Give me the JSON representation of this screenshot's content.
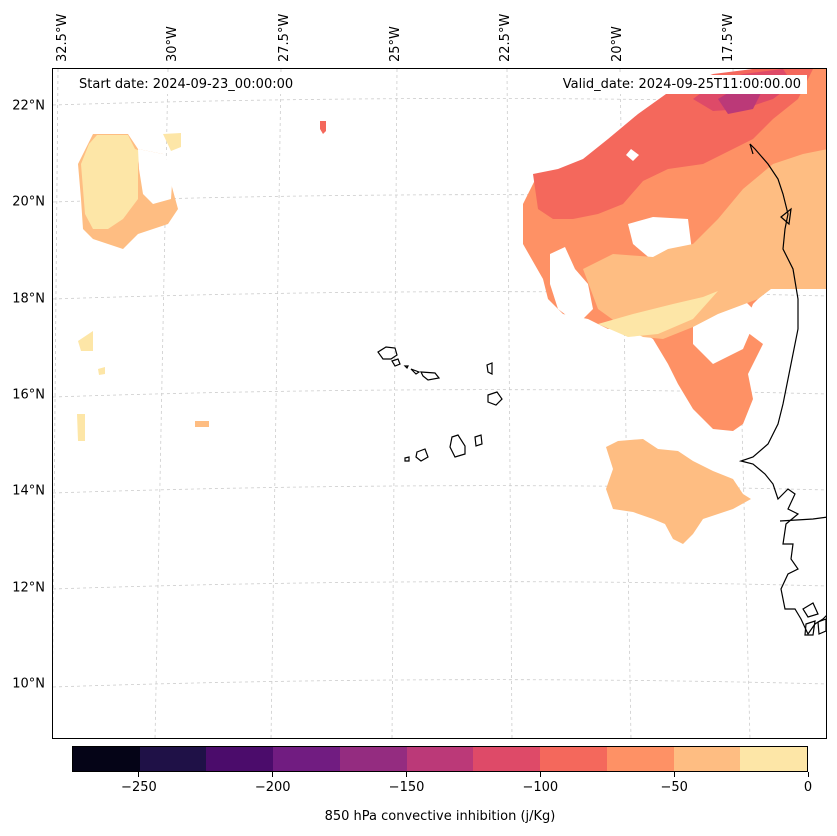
{
  "map": {
    "start_date": "Start date: 2024-09-23_00:00:00",
    "valid_date": "Valid_date: 2024-09-25T11:00:00.00",
    "lon_labels": [
      "32.5°W",
      "30°W",
      "27.5°W",
      "25°W",
      "22.5°W",
      "20°W",
      "17.5°W"
    ],
    "lat_labels": [
      "22°N",
      "20°N",
      "18°N",
      "16°N",
      "14°N",
      "12°N",
      "10°N"
    ],
    "extent": {
      "lon_min": -33.0,
      "lon_max": -16.0,
      "lat_min": 9.0,
      "lat_max": 22.8
    },
    "regions": [
      "Cape Verde Islands",
      "West African coast (Mauritania, Senegal, Gambia, Guinea-Bissau)"
    ]
  },
  "colorbar": {
    "title": "850 hPa convective inhibition (j/Kg)",
    "tick_labels": [
      "−250",
      "−200",
      "−150",
      "−100",
      "−50",
      "0"
    ],
    "tick_values": [
      -250,
      -200,
      -150,
      -100,
      -50,
      0
    ],
    "range": [
      -275,
      0
    ],
    "levels": [
      -275,
      -250,
      -225,
      -200,
      -175,
      -150,
      -125,
      -100,
      -75,
      -50,
      -25,
      0
    ],
    "colors": [
      "#050417",
      "#1f1147",
      "#4b0c6b",
      "#711c81",
      "#942c80",
      "#bb3978",
      "#de4a68",
      "#f4685c",
      "#fe9165",
      "#febd82",
      "#fde6a7"
    ]
  }
}
